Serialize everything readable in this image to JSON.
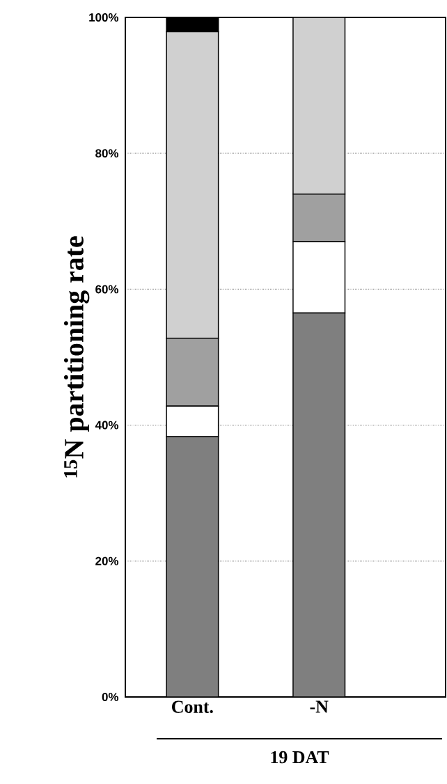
{
  "chart_data": {
    "type": "bar",
    "stacked": true,
    "ylabel": "$^{15}$N partitioning rate",
    "xlabel": "19 DAT",
    "categories": [
      "Cont.",
      "-N"
    ],
    "series": [
      {
        "color": "#7f7f7f",
        "values": [
          38.3,
          56.5
        ]
      },
      {
        "color": "#ffffff",
        "values": [
          4.5,
          10.5
        ]
      },
      {
        "color": "#a0a0a0",
        "values": [
          10.0,
          7.0
        ]
      },
      {
        "color": "#d0d0d0",
        "values": [
          45.1,
          26.0
        ]
      },
      {
        "color": "#000000",
        "values": [
          2.1,
          null
        ]
      }
    ],
    "ylim": [
      0,
      100
    ],
    "yticks": [
      {
        "value": 0,
        "label": "0%"
      },
      {
        "value": 20,
        "label": "20%"
      },
      {
        "value": 40,
        "label": "40%"
      },
      {
        "value": 60,
        "label": "60%"
      },
      {
        "value": 80,
        "label": "80%"
      },
      {
        "value": 100,
        "label": "100%"
      }
    ],
    "grid": "y"
  }
}
